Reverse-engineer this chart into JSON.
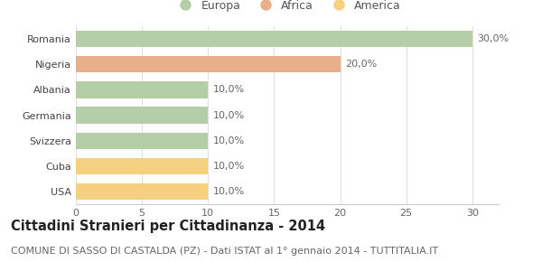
{
  "categories": [
    "Romania",
    "Nigeria",
    "Albania",
    "Germania",
    "Svizzera",
    "Cuba",
    "USA"
  ],
  "values": [
    30.0,
    20.0,
    10.0,
    10.0,
    10.0,
    10.0,
    10.0
  ],
  "colors": [
    "#b5cea8",
    "#e8b08a",
    "#b5cea8",
    "#b5cea8",
    "#b5cea8",
    "#f5d080",
    "#f5d080"
  ],
  "labels": [
    "30,0%",
    "20,0%",
    "10,0%",
    "10,0%",
    "10,0%",
    "10,0%",
    "10,0%"
  ],
  "xlim": [
    0,
    32
  ],
  "xticks": [
    0,
    5,
    10,
    15,
    20,
    25,
    30
  ],
  "legend_items": [
    {
      "label": "Europa",
      "color": "#b5cea8"
    },
    {
      "label": "Africa",
      "color": "#e8b08a"
    },
    {
      "label": "America",
      "color": "#f5d080"
    }
  ],
  "title": "Cittadini Stranieri per Cittadinanza - 2014",
  "subtitle": "COMUNE DI SASSO DI CASTALDA (PZ) - Dati ISTAT al 1° gennaio 2014 - TUTTITALIA.IT",
  "bg_color": "#ffffff",
  "grid_color": "#e0e0e0",
  "bar_height": 0.65,
  "label_fontsize": 8,
  "tick_fontsize": 8,
  "title_fontsize": 10.5,
  "subtitle_fontsize": 8
}
